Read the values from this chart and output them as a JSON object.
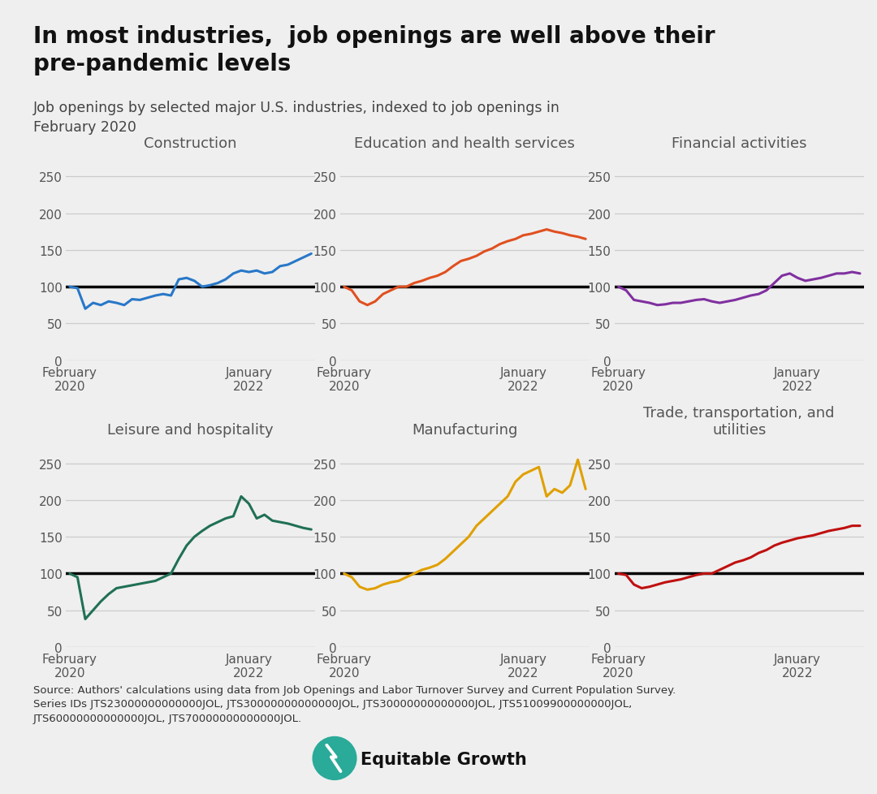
{
  "title": "In most industries,  job openings are well above their\npre-pandemic levels",
  "subtitle": "Job openings by selected major U.S. industries, indexed to job openings in\nFebruary 2020",
  "source": "Source: Authors' calculations using data from Job Openings and Labor Turnover Survey and Current Population Survey.\nSeries IDs JTS23000000000000JOL, JTS30000000000000JOL, JTS30000000000000JOL, JTS51009900000000JOL,\nJTS60000000000000JOL, JTS70000000000000JOL.",
  "background_color": "#efefef",
  "ylim": [
    0,
    275
  ],
  "yticks": [
    0,
    50,
    100,
    150,
    200,
    250
  ],
  "panels": [
    {
      "title": "Construction",
      "color": "#2878c8",
      "data": [
        100,
        98,
        70,
        78,
        75,
        80,
        78,
        75,
        83,
        82,
        85,
        88,
        90,
        88,
        110,
        112,
        108,
        100,
        102,
        105,
        110,
        118,
        122,
        120,
        122,
        118,
        120,
        128,
        130,
        135,
        140,
        145
      ]
    },
    {
      "title": "Education and health services",
      "color": "#e05020",
      "data": [
        100,
        95,
        80,
        75,
        80,
        90,
        95,
        100,
        100,
        105,
        108,
        112,
        115,
        120,
        128,
        135,
        138,
        142,
        148,
        152,
        158,
        162,
        165,
        170,
        172,
        175,
        178,
        175,
        173,
        170,
        168,
        165
      ]
    },
    {
      "title": "Financial activities",
      "color": "#8030a0",
      "data": [
        100,
        95,
        82,
        80,
        78,
        75,
        76,
        78,
        78,
        80,
        82,
        83,
        80,
        78,
        80,
        82,
        85,
        88,
        90,
        95,
        105,
        115,
        118,
        112,
        108,
        110,
        112,
        115,
        118,
        118,
        120,
        118
      ]
    },
    {
      "title": "Leisure and hospitality",
      "color": "#207055",
      "data": [
        100,
        95,
        38,
        50,
        62,
        72,
        80,
        82,
        84,
        86,
        88,
        90,
        95,
        100,
        120,
        138,
        150,
        158,
        165,
        170,
        175,
        178,
        205,
        195,
        175,
        180,
        172,
        170,
        168,
        165,
        162,
        160
      ]
    },
    {
      "title": "Manufacturing",
      "color": "#e0a000",
      "data": [
        100,
        95,
        82,
        78,
        80,
        85,
        88,
        90,
        95,
        100,
        105,
        108,
        112,
        120,
        130,
        140,
        150,
        165,
        175,
        185,
        195,
        205,
        225,
        235,
        240,
        245,
        205,
        215,
        210,
        220,
        255,
        215
      ]
    },
    {
      "title": "Trade, transportation, and\nutilities",
      "color": "#c01010",
      "data": [
        100,
        98,
        85,
        80,
        82,
        85,
        88,
        90,
        92,
        95,
        98,
        100,
        100,
        105,
        110,
        115,
        118,
        122,
        128,
        132,
        138,
        142,
        145,
        148,
        150,
        152,
        155,
        158,
        160,
        162,
        165,
        165
      ]
    }
  ],
  "x_tick_positions": [
    0,
    23
  ],
  "x_tick_labels": [
    "February\n2020",
    "January\n2022"
  ],
  "n_points": 32,
  "logo_color": "#2aaa99"
}
